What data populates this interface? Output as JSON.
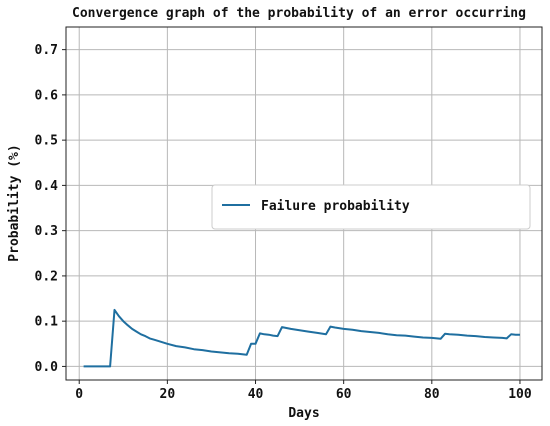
{
  "chart_data": {
    "type": "line",
    "title": "Convergence graph of the probability of an error occurring",
    "xlabel": "Days",
    "ylabel": "Probability (%)",
    "xlim": [
      -3,
      105
    ],
    "ylim": [
      -0.03,
      0.75
    ],
    "xticks": [
      0,
      20,
      40,
      60,
      80,
      100
    ],
    "xtick_labels": [
      "0",
      "20",
      "40",
      "60",
      "80",
      "100"
    ],
    "yticks": [
      0.0,
      0.1,
      0.2,
      0.3,
      0.4,
      0.5,
      0.6,
      0.7
    ],
    "ytick_labels": [
      "0.0",
      "0.1",
      "0.2",
      "0.3",
      "0.4",
      "0.5",
      "0.6",
      "0.7"
    ],
    "grid": true,
    "legend_position": "center-right",
    "series": [
      {
        "name": "Failure probability",
        "color": "#1f6fa0",
        "x": [
          1,
          2,
          3,
          4,
          5,
          6,
          7,
          8,
          9,
          10,
          11,
          12,
          13,
          14,
          15,
          16,
          17,
          18,
          19,
          20,
          22,
          24,
          26,
          28,
          30,
          32,
          34,
          36,
          38,
          39,
          40,
          41,
          42,
          43,
          44,
          45,
          46,
          47,
          48,
          50,
          52,
          54,
          56,
          57,
          58,
          60,
          62,
          64,
          66,
          68,
          70,
          72,
          74,
          76,
          78,
          80,
          82,
          83,
          84,
          86,
          88,
          90,
          92,
          94,
          96,
          97,
          98,
          99,
          100
        ],
        "y": [
          0.0,
          0.0,
          0.0,
          0.0,
          0.0,
          0.0,
          0.0,
          0.125,
          0.111,
          0.1,
          0.091,
          0.083,
          0.077,
          0.071,
          0.067,
          0.062,
          0.059,
          0.056,
          0.053,
          0.05,
          0.045,
          0.042,
          0.038,
          0.036,
          0.033,
          0.031,
          0.029,
          0.028,
          0.026,
          0.05,
          0.05,
          0.073,
          0.071,
          0.07,
          0.068,
          0.067,
          0.087,
          0.085,
          0.083,
          0.08,
          0.077,
          0.074,
          0.071,
          0.088,
          0.086,
          0.083,
          0.081,
          0.078,
          0.076,
          0.074,
          0.071,
          0.069,
          0.068,
          0.066,
          0.064,
          0.063,
          0.061,
          0.072,
          0.071,
          0.07,
          0.068,
          0.067,
          0.065,
          0.064,
          0.063,
          0.062,
          0.071,
          0.07,
          0.07
        ]
      }
    ]
  }
}
